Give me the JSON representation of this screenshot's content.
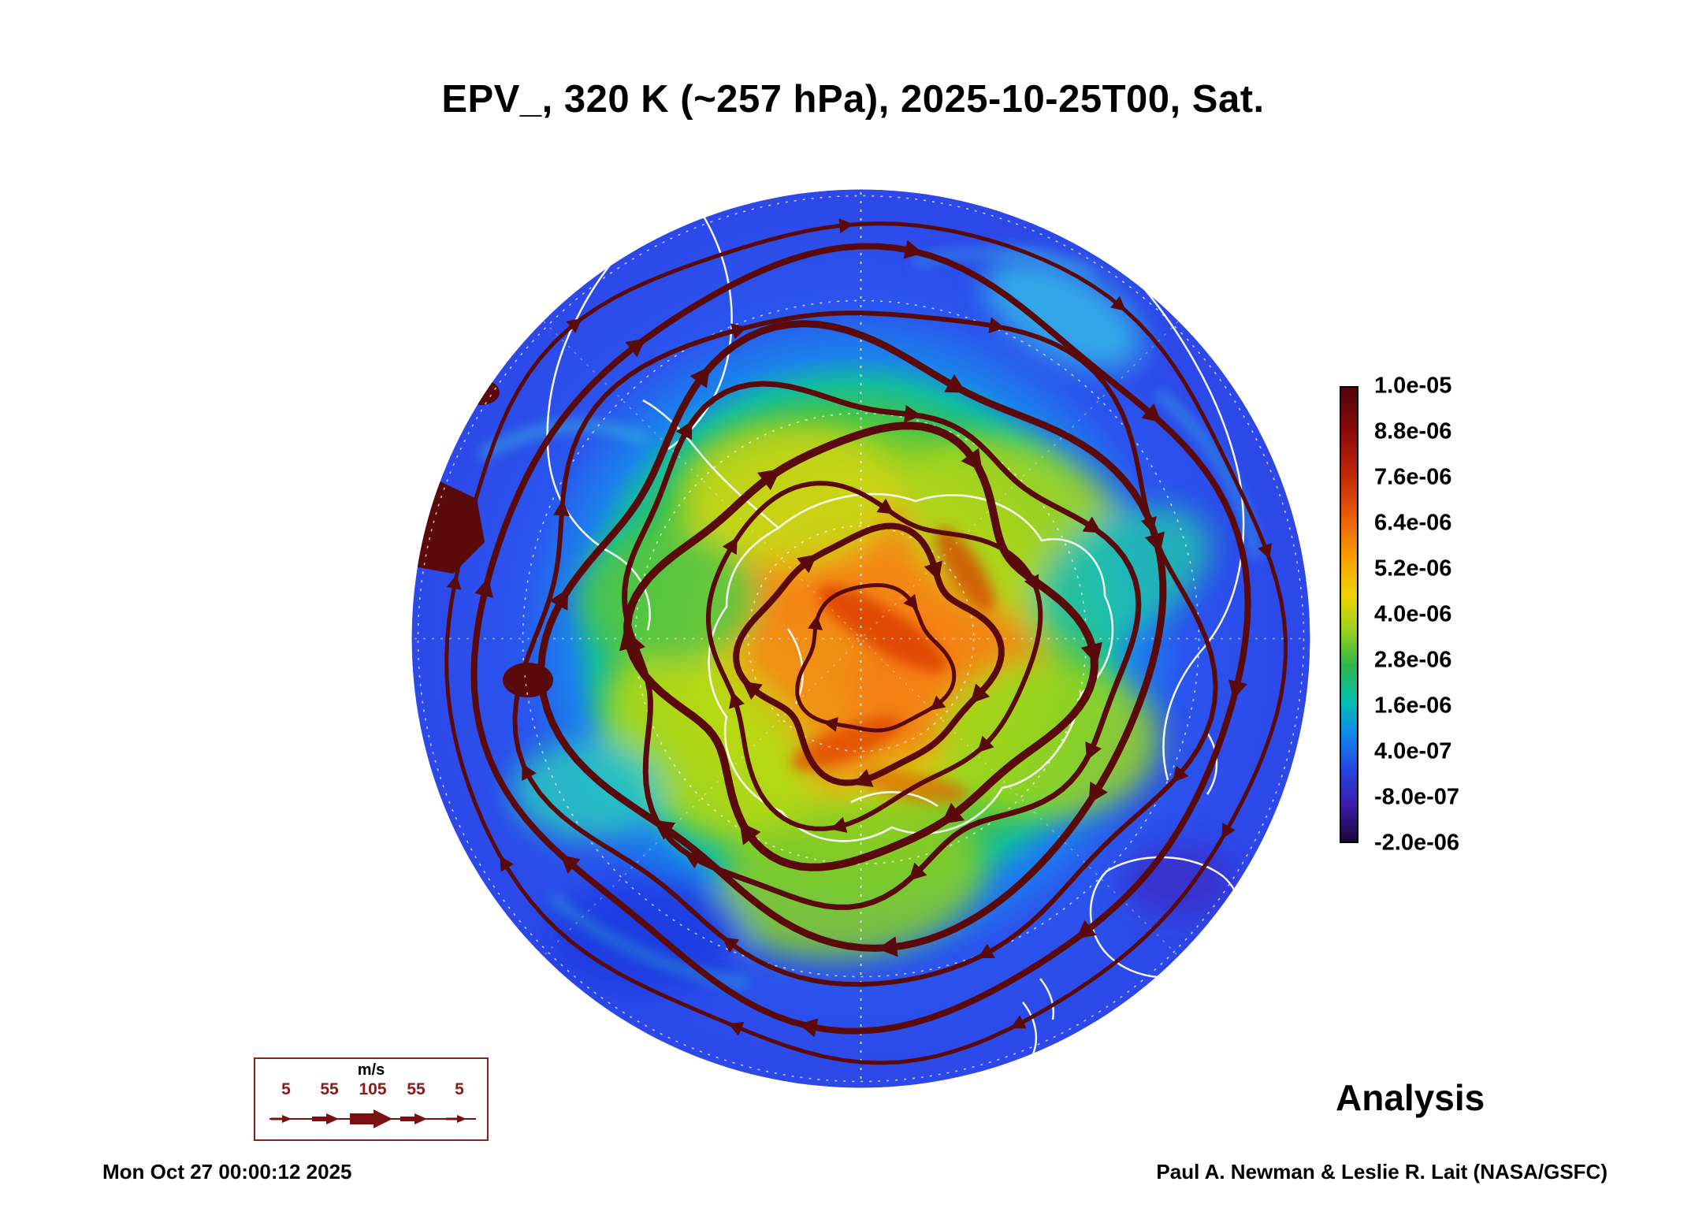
{
  "title": "EPV_, 320 K (~257 hPa), 2025-10-25T00, Sat.",
  "annotations": {
    "timestamp": "Mon Oct 27 00:00:12 2025",
    "analysis_label": "Analysis",
    "credit": "Paul A. Newman & Leslie R. Lait (NASA/GSFC)"
  },
  "wind_legend": {
    "units": "m/s",
    "ticks": [
      "5",
      "55",
      "105",
      "55",
      "5"
    ]
  },
  "colorbar": {
    "labels": [
      "1.0e-05",
      "8.8e-06",
      "7.6e-06",
      "6.4e-06",
      "5.2e-06",
      "4.0e-06",
      "2.8e-06",
      "1.6e-06",
      "4.0e-07",
      "-8.0e-07",
      "-2.0e-06"
    ]
  },
  "colors": {
    "streamline": "#5a0a0a",
    "coastline": "#ffffff",
    "vortex_core": "#f2820f",
    "mid_field": "#9ed41c",
    "outer_field": "#2a55ee",
    "legend_accent": "#8b1a1a"
  },
  "chart_data": {
    "type": "heatmap",
    "title": "EPV_, 320 K (~257 hPa), 2025-10-25T00, Sat.",
    "field": "Ertel potential vorticity (EPV_)",
    "theta_level_K": 320,
    "pressure_hPa_approx": 257,
    "valid_time": "2025-10-25T00",
    "day_of_week": "Sat.",
    "product": "Analysis",
    "projection": "south polar stereographic disc with white coastlines and dashed graticule",
    "colorbar_levels": [
      1e-05,
      8.8e-06,
      7.6e-06,
      6.4e-06,
      5.2e-06,
      4e-06,
      2.8e-06,
      1.6e-06,
      4e-07,
      -8e-07,
      -2e-06
    ],
    "colorbar_colors_top_to_bottom": [
      "#52040a",
      "#8f0a0a",
      "#c42c06",
      "#ef6708",
      "#f6a400",
      "#eed304",
      "#9ed41c",
      "#2eb84a",
      "#06bfae",
      "#0d8ce9",
      "#2446e2",
      "#3a1cae",
      "#1e0538"
    ],
    "legend_position": "right",
    "overlay": {
      "type": "wind streamlines with arrowheads",
      "color": "#5a0a0a",
      "speed_legend_ms": [
        5,
        55,
        105,
        55,
        5
      ],
      "flow": "clockwise circulation around elevated EPV over the polar cap"
    },
    "field_structure": "blue ring of low EPV around the rim, green/yellow mid-values, orange-red maximum over the polar interior with dark-red saturated patches at the left limb",
    "generated": "Mon Oct 27 00:00:12 2025",
    "credit": "Paul A. Newman & Leslie R. Lait (NASA/GSFC)"
  }
}
